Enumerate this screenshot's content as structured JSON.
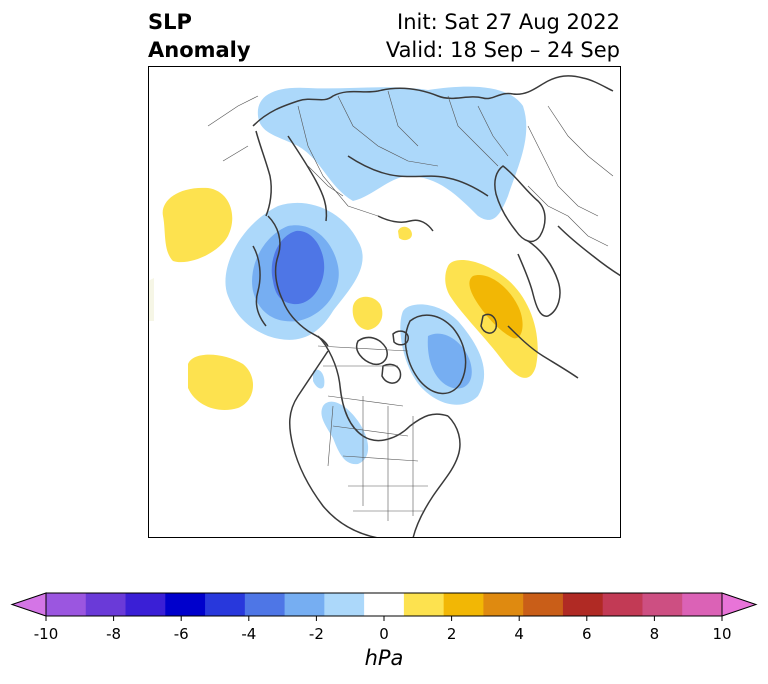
{
  "title": {
    "left_line1": "SLP",
    "left_line2": "Anomaly",
    "right_line1": "Init: Sat 27 Aug 2022",
    "right_line2": "Valid: 18 Sep – 24 Sep"
  },
  "colorbar": {
    "units": "hPa",
    "ticks": [
      "-10",
      "-8",
      "-6",
      "-4",
      "-2",
      "0",
      "2",
      "4",
      "6",
      "8",
      "10"
    ],
    "colors": [
      "#d475e6",
      "#9b56e0",
      "#6a3ad8",
      "#3a1fd6",
      "#0000cc",
      "#2838dc",
      "#4e76e6",
      "#76aef2",
      "#acd8fa",
      "#ffffff",
      "#fde24f",
      "#f2b705",
      "#df8a10",
      "#c95e18",
      "#b02a24",
      "#c23a55",
      "#cd4f82",
      "#db62b6",
      "#e874d8"
    ]
  },
  "map": {
    "projection": "north-polar-stereographic",
    "anomalies": [
      {
        "region": "north-pacific-west",
        "sign": "positive",
        "level_hpa": 1
      },
      {
        "region": "north-pacific-east",
        "sign": "positive",
        "level_hpa": 1
      },
      {
        "region": "central-siberia",
        "sign": "negative",
        "level_hpa": -2
      },
      {
        "region": "bering-alaska",
        "sign": "negative",
        "level_hpa": -5
      },
      {
        "region": "canadian-arctic-greenland",
        "sign": "negative",
        "level_hpa": -3
      },
      {
        "region": "barents-scandinavia",
        "sign": "positive",
        "level_hpa": 3
      },
      {
        "region": "arctic-ocean",
        "sign": "positive",
        "level_hpa": 1
      },
      {
        "region": "western-north-america",
        "sign": "negative",
        "level_hpa": -1
      }
    ]
  }
}
